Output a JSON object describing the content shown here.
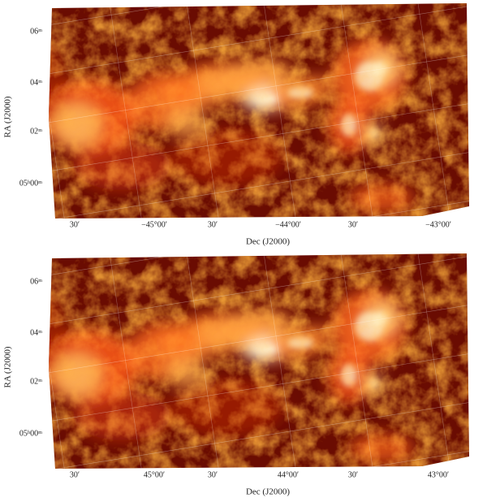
{
  "panels": [
    {
      "y_axis_label": "RA (J2000)",
      "x_axis_label": "Dec (J2000)",
      "y_tick_labels": [
        "06ᵐ",
        "04ᵐ",
        "02ᵐ",
        "05ʰ00ᵐ"
      ],
      "x_tick_labels": [
        "30′",
        "−45°00′",
        "30′",
        "−44°00′",
        "30′",
        "−43°00′"
      ]
    },
    {
      "y_axis_label": "RA (J2000)",
      "x_axis_label": "Dec (J2000)",
      "y_tick_labels": [
        "06ᵐ",
        "04ᵐ",
        "02ᵐ",
        "05ʰ00ᵐ"
      ],
      "x_tick_labels": [
        "30′",
        "45°00′",
        "30′",
        "44°00′",
        "30′",
        "43°00′"
      ]
    }
  ]
}
